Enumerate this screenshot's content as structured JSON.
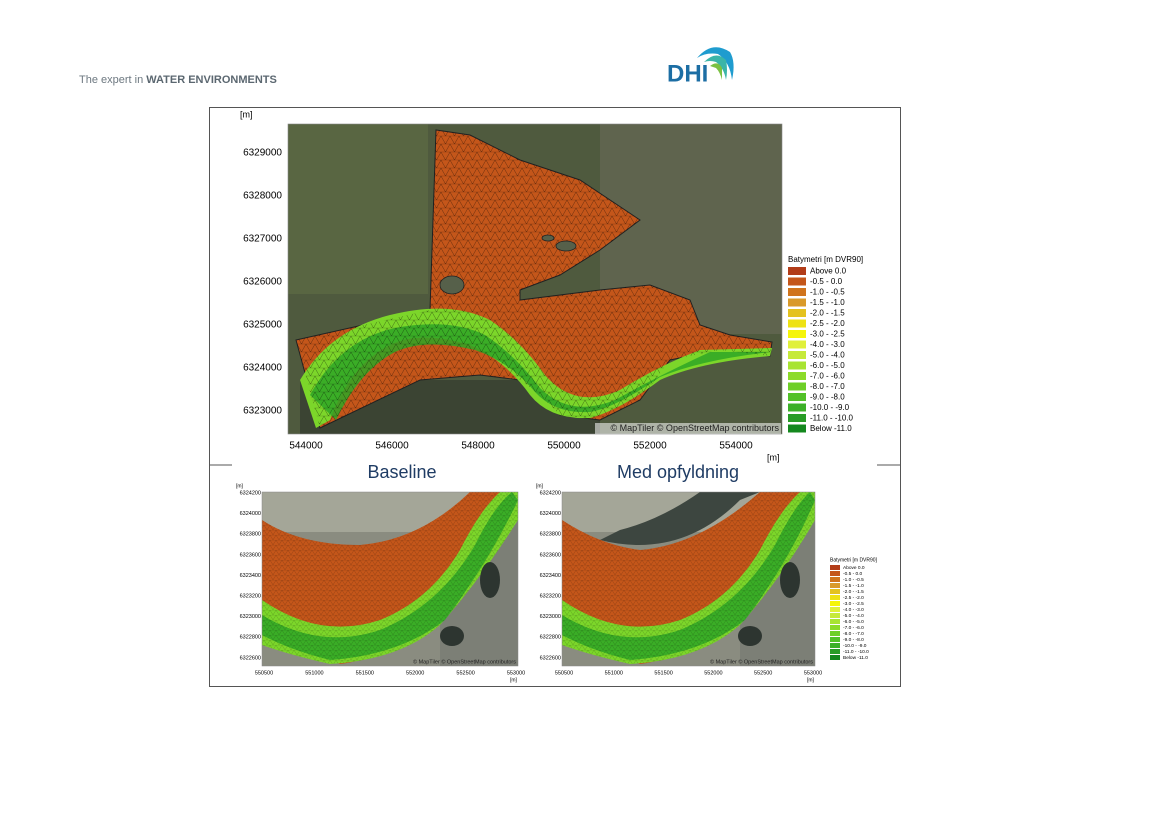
{
  "header": {
    "tagline_prefix": "The expert in",
    "tagline_emphasis": "WATER ENVIRONMENTS",
    "logo": "DHI"
  },
  "unit": "[m]",
  "attribution": "© MapTiler © OpenStreetMap contributors",
  "legend": {
    "title": "Batymetri [m DVR90]",
    "entries": [
      {
        "label": "Above 0.0",
        "color": "#b23c18"
      },
      {
        "label": "-0.5 - 0.0",
        "color": "#c4561a"
      },
      {
        "label": "-1.0 - -0.5",
        "color": "#d0741c"
      },
      {
        "label": "-1.5 - -1.0",
        "color": "#d99a2a"
      },
      {
        "label": "-2.0 - -1.5",
        "color": "#e4c21e"
      },
      {
        "label": "-2.5 - -2.0",
        "color": "#eee214"
      },
      {
        "label": "-3.0 - -2.5",
        "color": "#f5f50a"
      },
      {
        "label": "-4.0 - -3.0",
        "color": "#e0f03a"
      },
      {
        "label": "-5.0 - -4.0",
        "color": "#c6ea3a"
      },
      {
        "label": "-6.0 - -5.0",
        "color": "#a8e432"
      },
      {
        "label": "-7.0 - -6.0",
        "color": "#8cdb2a"
      },
      {
        "label": "-8.0 - -7.0",
        "color": "#6ecf28"
      },
      {
        "label": "-9.0 - -8.0",
        "color": "#52c128"
      },
      {
        "label": "-10.0 - -9.0",
        "color": "#3cb028"
      },
      {
        "label": "-11.0 - -10.0",
        "color": "#289c26"
      },
      {
        "label": "Below -11.0",
        "color": "#14881e"
      }
    ]
  },
  "main_map": {
    "yticks": [
      6329000,
      6328000,
      6327000,
      6326000,
      6325000,
      6324000,
      6323000
    ],
    "xticks": [
      544000,
      546000,
      548000,
      550000,
      552000,
      554000
    ]
  },
  "panels": [
    {
      "title": "Baseline",
      "yticks": [
        6324200,
        6324000,
        6323800,
        6323600,
        6323400,
        6323200,
        6323000,
        6322800,
        6322600
      ],
      "xticks": [
        550500,
        551000,
        551500,
        552000,
        552500,
        553000
      ]
    },
    {
      "title": "Med opfyldning",
      "yticks": [
        6324200,
        6324000,
        6323800,
        6323600,
        6323400,
        6323200,
        6323000,
        6322800,
        6322600
      ],
      "xticks": [
        550500,
        551000,
        551500,
        552000,
        552500,
        553000
      ]
    }
  ]
}
